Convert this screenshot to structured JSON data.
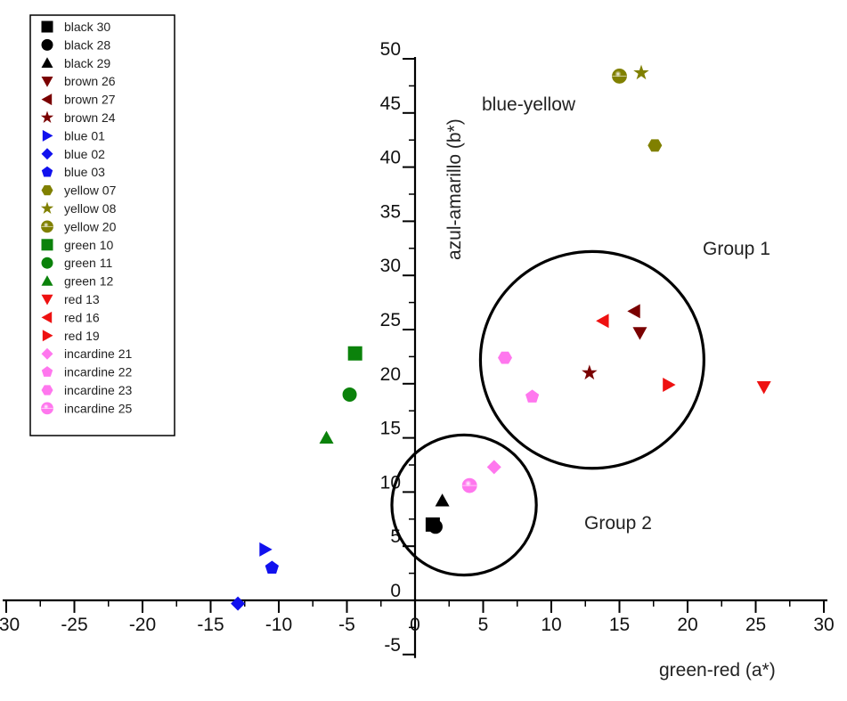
{
  "chart_data": {
    "type": "scatter",
    "title": "",
    "xlabel": "green-red (a*)",
    "ylabel": "azul-amarillo (b*)",
    "xlim": [
      -30,
      30
    ],
    "ylim": [
      -5,
      50
    ],
    "x_ticks": [
      -30,
      -25,
      -20,
      -15,
      -10,
      -5,
      0,
      5,
      10,
      15,
      20,
      25,
      30
    ],
    "x_tick_labels": [
      "-30",
      "-25",
      "-20",
      "-15",
      "-10",
      "-5",
      "0",
      "5",
      "10",
      "15",
      "20",
      "25",
      "30"
    ],
    "y_ticks": [
      -5,
      0,
      5,
      10,
      15,
      20,
      25,
      30,
      35,
      40,
      45,
      50
    ],
    "y_tick_labels": [
      "-5",
      "0",
      "5",
      "10",
      "15",
      "20",
      "25",
      "30",
      "35",
      "40",
      "45",
      "50"
    ],
    "legend_position": "top-left",
    "series": [
      {
        "name": "black 30",
        "color": "#000000",
        "marker": "square",
        "x": 1.3,
        "y": 7.0
      },
      {
        "name": "black 28",
        "color": "#000000",
        "marker": "circle",
        "x": 1.5,
        "y": 6.8
      },
      {
        "name": "black 29",
        "color": "#000000",
        "marker": "triangle-up",
        "x": 2.0,
        "y": 9.2
      },
      {
        "name": "brown 26",
        "color": "#7a0000",
        "marker": "triangle-down",
        "x": 16.5,
        "y": 24.7
      },
      {
        "name": "brown 27",
        "color": "#7a0000",
        "marker": "triangle-left",
        "x": 16.1,
        "y": 26.7
      },
      {
        "name": "brown 24",
        "color": "#7a0000",
        "marker": "star",
        "x": 12.8,
        "y": 21.0
      },
      {
        "name": "blue 01",
        "color": "#1111ee",
        "marker": "triangle-right",
        "x": -11.0,
        "y": 4.7
      },
      {
        "name": "blue 02",
        "color": "#1111ee",
        "marker": "diamond",
        "x": -13.0,
        "y": -0.3
      },
      {
        "name": "blue 03",
        "color": "#1111ee",
        "marker": "pentagon",
        "x": -10.5,
        "y": 3.0
      },
      {
        "name": "yellow 07",
        "color": "#808000",
        "marker": "hexagon",
        "x": 17.6,
        "y": 42.0
      },
      {
        "name": "yellow 08",
        "color": "#808000",
        "marker": "star",
        "x": 16.6,
        "y": 48.7
      },
      {
        "name": "yellow 20",
        "color": "#808000",
        "marker": "sphere",
        "x": 15.0,
        "y": 48.4
      },
      {
        "name": "green 10",
        "color": "#0b820b",
        "marker": "square",
        "x": -4.4,
        "y": 22.8
      },
      {
        "name": "green 11",
        "color": "#0b820b",
        "marker": "circle",
        "x": -4.8,
        "y": 19.0
      },
      {
        "name": "green 12",
        "color": "#0b820b",
        "marker": "triangle-up",
        "x": -6.5,
        "y": 15.0
      },
      {
        "name": "red 13",
        "color": "#ee1111",
        "marker": "triangle-down",
        "x": 25.6,
        "y": 19.7
      },
      {
        "name": "red 16",
        "color": "#ee1111",
        "marker": "triangle-left",
        "x": 13.8,
        "y": 25.8
      },
      {
        "name": "red 19",
        "color": "#ee1111",
        "marker": "triangle-right",
        "x": 18.6,
        "y": 19.9
      },
      {
        "name": "incardine 21",
        "color": "#ff77ee",
        "marker": "diamond",
        "x": 5.8,
        "y": 12.3
      },
      {
        "name": "incardine 22",
        "color": "#ff77ee",
        "marker": "pentagon",
        "x": 8.6,
        "y": 18.8
      },
      {
        "name": "incardine 23",
        "color": "#ff77ee",
        "marker": "hexagon",
        "x": 6.6,
        "y": 22.4
      },
      {
        "name": "incardine 25",
        "color": "#ff77ee",
        "marker": "sphere",
        "x": 4.0,
        "y": 10.6
      }
    ],
    "annotations": [
      {
        "text": "blue-yellow"
      },
      {
        "text": "Group 1",
        "circle_center": [
          13.0,
          22.2
        ],
        "circle_radius_x": 8.2
      },
      {
        "text": "Group 2",
        "circle_center": [
          3.6,
          8.8
        ],
        "circle_radius_x": 5.3
      }
    ]
  }
}
